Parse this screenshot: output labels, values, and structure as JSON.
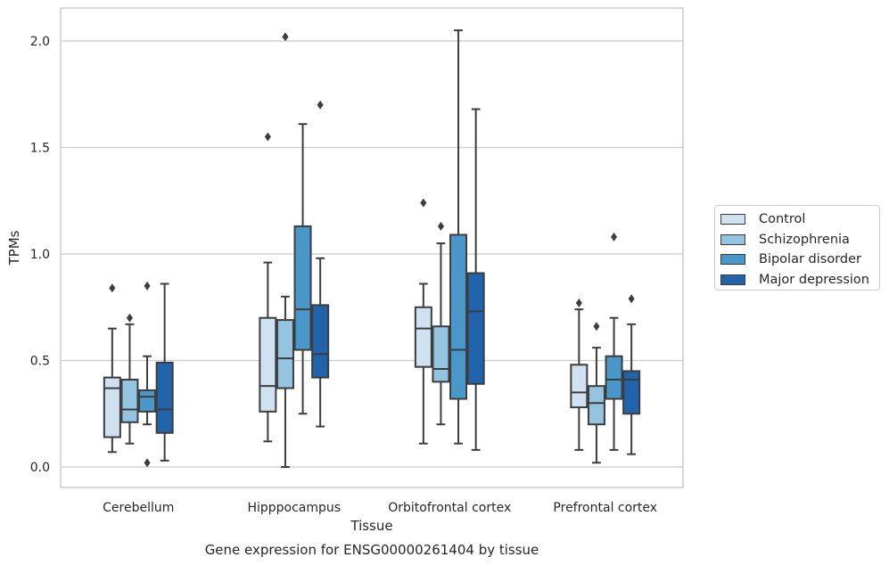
{
  "chart_data": {
    "type": "box",
    "title": "Gene expression for ENSG00000261404 by tissue",
    "xlabel": "Tissue",
    "ylabel": "TPMs",
    "ylim": [
      -0.1,
      2.15
    ],
    "yticks": [
      "0.0",
      "0.5",
      "1.0",
      "1.5",
      "2.0"
    ],
    "grid": "horizontal",
    "legend_position": "right",
    "categories": [
      "Cerebellum",
      "Hipppocampus",
      "Orbitofrontal cortex",
      "Prefrontal cortex"
    ],
    "series": [
      {
        "name": "Control",
        "color": "#d0e1f2",
        "boxes": [
          {
            "whislo": 0.07,
            "q1": 0.14,
            "med": 0.37,
            "q3": 0.42,
            "whishi": 0.65,
            "fliers": [
              0.84
            ]
          },
          {
            "whislo": 0.12,
            "q1": 0.26,
            "med": 0.38,
            "q3": 0.7,
            "whishi": 0.96,
            "fliers": [
              1.55
            ]
          },
          {
            "whislo": 0.11,
            "q1": 0.47,
            "med": 0.65,
            "q3": 0.75,
            "whishi": 0.86,
            "fliers": [
              1.24
            ]
          },
          {
            "whislo": 0.08,
            "q1": 0.28,
            "med": 0.35,
            "q3": 0.48,
            "whishi": 0.74,
            "fliers": [
              0.77
            ]
          }
        ]
      },
      {
        "name": "Schizophrenia",
        "color": "#94c4df",
        "boxes": [
          {
            "whislo": 0.11,
            "q1": 0.21,
            "med": 0.27,
            "q3": 0.41,
            "whishi": 0.67,
            "fliers": [
              0.7
            ]
          },
          {
            "whislo": 0.0,
            "q1": 0.37,
            "med": 0.51,
            "q3": 0.69,
            "whishi": 0.8,
            "fliers": [
              2.02
            ]
          },
          {
            "whislo": 0.2,
            "q1": 0.4,
            "med": 0.46,
            "q3": 0.66,
            "whishi": 1.05,
            "fliers": [
              1.13
            ]
          },
          {
            "whislo": 0.02,
            "q1": 0.2,
            "med": 0.3,
            "q3": 0.38,
            "whishi": 0.56,
            "fliers": [
              0.66
            ]
          }
        ]
      },
      {
        "name": "Bipolar disorder",
        "color": "#4a98c9",
        "boxes": [
          {
            "whislo": 0.2,
            "q1": 0.26,
            "med": 0.33,
            "q3": 0.36,
            "whishi": 0.52,
            "fliers": [
              0.85,
              0.02
            ]
          },
          {
            "whislo": 0.25,
            "q1": 0.55,
            "med": 0.74,
            "q3": 1.13,
            "whishi": 1.61,
            "fliers": []
          },
          {
            "whislo": 0.11,
            "q1": 0.32,
            "med": 0.55,
            "q3": 1.09,
            "whishi": 2.05,
            "fliers": []
          },
          {
            "whislo": 0.08,
            "q1": 0.32,
            "med": 0.41,
            "q3": 0.52,
            "whishi": 0.7,
            "fliers": [
              1.08
            ]
          }
        ]
      },
      {
        "name": "Major depression",
        "color": "#2164ab",
        "boxes": [
          {
            "whislo": 0.03,
            "q1": 0.16,
            "med": 0.27,
            "q3": 0.49,
            "whishi": 0.86,
            "fliers": []
          },
          {
            "whislo": 0.19,
            "q1": 0.42,
            "med": 0.53,
            "q3": 0.76,
            "whishi": 0.98,
            "fliers": [
              1.7
            ]
          },
          {
            "whislo": 0.08,
            "q1": 0.39,
            "med": 0.73,
            "q3": 0.91,
            "whishi": 1.68,
            "fliers": []
          },
          {
            "whislo": 0.06,
            "q1": 0.25,
            "med": 0.41,
            "q3": 0.45,
            "whishi": 0.67,
            "fliers": [
              0.79
            ]
          }
        ]
      }
    ]
  }
}
